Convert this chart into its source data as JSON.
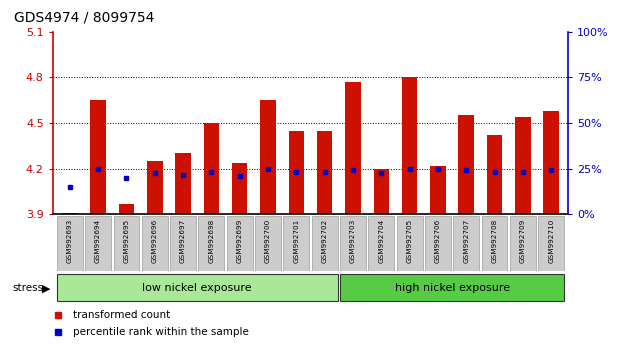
{
  "title": "GDS4974 / 8099754",
  "samples": [
    "GSM992693",
    "GSM992694",
    "GSM992695",
    "GSM992696",
    "GSM992697",
    "GSM992698",
    "GSM992699",
    "GSM992700",
    "GSM992701",
    "GSM992702",
    "GSM992703",
    "GSM992704",
    "GSM992705",
    "GSM992706",
    "GSM992707",
    "GSM992708",
    "GSM992709",
    "GSM992710"
  ],
  "red_values": [
    3.91,
    4.65,
    3.97,
    4.25,
    4.3,
    4.5,
    4.24,
    4.65,
    4.45,
    4.45,
    4.77,
    4.2,
    4.8,
    4.22,
    4.55,
    4.42,
    4.54,
    4.58
  ],
  "blue_values": [
    4.08,
    4.2,
    4.14,
    4.17,
    4.16,
    4.18,
    4.15,
    4.2,
    4.18,
    4.18,
    4.19,
    4.17,
    4.2,
    4.2,
    4.19,
    4.18,
    4.18,
    4.19
  ],
  "baseline": 3.9,
  "ylim_left": [
    3.9,
    5.1
  ],
  "ylim_right": [
    0,
    100
  ],
  "yticks_left": [
    3.9,
    4.2,
    4.5,
    4.8,
    5.1
  ],
  "yticks_right": [
    0,
    25,
    50,
    75,
    100
  ],
  "ylabel_left_color": "#cc0000",
  "ylabel_right_color": "#0000cc",
  "group1_label": "low nickel exposure",
  "group2_label": "high nickel exposure",
  "stress_label": "stress",
  "bar_color": "#cc1100",
  "blue_color": "#0000cc",
  "group1_color": "#aae899",
  "group2_color": "#55cc44",
  "legend_red": "transformed count",
  "legend_blue": "percentile rank within the sample",
  "label_bg": "#cccccc"
}
